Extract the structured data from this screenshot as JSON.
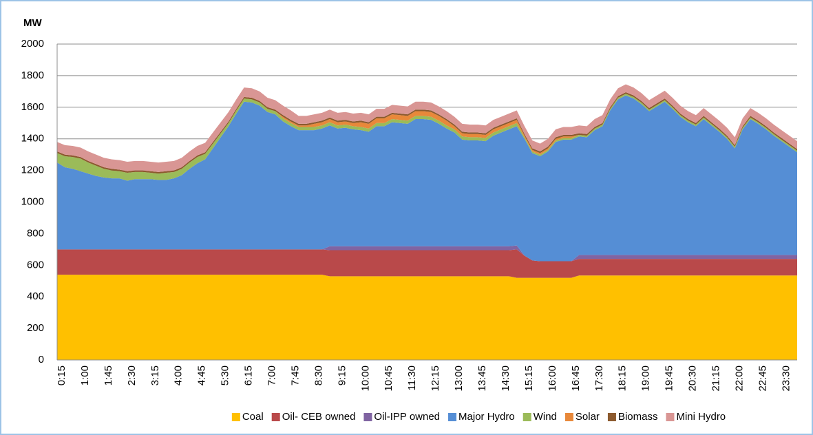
{
  "chart_data": {
    "type": "stacked-area",
    "y_label": "MW",
    "categories": [
      "0:15",
      null,
      null,
      "1:00",
      null,
      null,
      "1:45",
      null,
      null,
      "2:30",
      null,
      null,
      "3:15",
      null,
      null,
      "4:00",
      null,
      null,
      "4:45",
      null,
      null,
      "5:30",
      null,
      null,
      "6:15",
      null,
      null,
      "7:00",
      null,
      null,
      "7:45",
      null,
      null,
      "8:30",
      null,
      null,
      "9:15",
      null,
      null,
      "10:00",
      null,
      null,
      "10:45",
      null,
      null,
      "11:30",
      null,
      null,
      "12:15",
      null,
      null,
      "13:00",
      null,
      null,
      "13:45",
      null,
      null,
      "14:30",
      null,
      null,
      "15:15",
      null,
      null,
      "16:00",
      null,
      null,
      "16:45",
      null,
      null,
      "17:30",
      null,
      null,
      "18:15",
      null,
      null,
      "19:00",
      null,
      null,
      "19:45",
      null,
      null,
      "20:30",
      null,
      null,
      "21:15",
      null,
      null,
      "22:00",
      null,
      null,
      "22:45",
      null,
      null,
      "23:30",
      null,
      null
    ],
    "series": [
      {
        "name": "Coal",
        "color": "#ffc000",
        "values": [
          540,
          540,
          540,
          540,
          540,
          540,
          540,
          540,
          540,
          540,
          540,
          540,
          540,
          540,
          540,
          540,
          540,
          540,
          540,
          540,
          540,
          540,
          540,
          540,
          540,
          540,
          540,
          540,
          540,
          540,
          540,
          540,
          540,
          540,
          540,
          530,
          530,
          530,
          530,
          530,
          530,
          530,
          530,
          530,
          530,
          530,
          530,
          530,
          530,
          530,
          530,
          530,
          530,
          530,
          530,
          530,
          530,
          530,
          530,
          520,
          520,
          520,
          520,
          520,
          520,
          520,
          520,
          535,
          535,
          535,
          535,
          535,
          535,
          535,
          535,
          535,
          535,
          535,
          535,
          535,
          535,
          535,
          535,
          535,
          535,
          535,
          535,
          535,
          535,
          535,
          535,
          535,
          535,
          535,
          535,
          535
        ]
      },
      {
        "name": "Oil- CEB owned",
        "color": "#b9494a",
        "values": [
          160,
          160,
          160,
          160,
          160,
          160,
          160,
          160,
          160,
          160,
          160,
          160,
          160,
          160,
          160,
          160,
          160,
          160,
          160,
          160,
          160,
          160,
          160,
          160,
          160,
          160,
          160,
          160,
          160,
          160,
          160,
          160,
          160,
          160,
          160,
          165,
          165,
          165,
          165,
          165,
          165,
          165,
          165,
          165,
          165,
          165,
          165,
          165,
          165,
          165,
          165,
          165,
          165,
          165,
          165,
          165,
          165,
          165,
          165,
          180,
          140,
          110,
          105,
          105,
          105,
          105,
          105,
          105,
          105,
          105,
          105,
          105,
          105,
          105,
          105,
          105,
          105,
          105,
          105,
          105,
          105,
          105,
          105,
          105,
          105,
          105,
          105,
          105,
          105,
          105,
          105,
          105,
          105,
          105,
          105,
          105
        ]
      },
      {
        "name": "Oil-IPP owned",
        "color": "#8064a2",
        "values": [
          0,
          0,
          0,
          0,
          0,
          0,
          0,
          0,
          0,
          0,
          0,
          0,
          0,
          0,
          0,
          0,
          0,
          0,
          0,
          0,
          0,
          0,
          0,
          0,
          0,
          0,
          0,
          0,
          0,
          0,
          0,
          0,
          0,
          0,
          0,
          25,
          25,
          25,
          25,
          25,
          25,
          25,
          25,
          25,
          25,
          25,
          25,
          25,
          25,
          25,
          25,
          25,
          25,
          25,
          25,
          25,
          25,
          25,
          25,
          25,
          0,
          0,
          0,
          0,
          0,
          0,
          0,
          25,
          25,
          25,
          25,
          25,
          25,
          25,
          25,
          25,
          25,
          25,
          25,
          25,
          25,
          25,
          25,
          25,
          25,
          25,
          25,
          25,
          25,
          25,
          25,
          25,
          25,
          25,
          25,
          25
        ]
      },
      {
        "name": "Major Hydro",
        "color": "#558ed5",
        "values": [
          550,
          520,
          510,
          495,
          480,
          465,
          455,
          450,
          450,
          435,
          445,
          445,
          445,
          440,
          440,
          450,
          470,
          510,
          545,
          570,
          640,
          710,
          780,
          860,
          935,
          930,
          910,
          870,
          855,
          810,
          780,
          755,
          755,
          755,
          765,
          765,
          745,
          750,
          740,
          735,
          725,
          760,
          760,
          785,
          780,
          775,
          805,
          805,
          800,
          775,
          745,
          720,
          675,
          670,
          670,
          665,
          700,
          720,
          740,
          755,
          740,
          680,
          665,
          695,
          755,
          770,
          770,
          750,
          745,
          790,
          815,
          915,
          985,
          1010,
          990,
          955,
          910,
          940,
          970,
          925,
          875,
          840,
          815,
          860,
          820,
          780,
          735,
          675,
          795,
          860,
          830,
          795,
          755,
          720,
          685,
          650
        ]
      },
      {
        "name": "Wind",
        "color": "#9bbb59",
        "values": [
          60,
          70,
          75,
          80,
          70,
          65,
          55,
          50,
          45,
          50,
          45,
          45,
          40,
          40,
          45,
          40,
          40,
          40,
          40,
          35,
          30,
          25,
          20,
          20,
          20,
          20,
          20,
          20,
          20,
          20,
          20,
          20,
          20,
          20,
          20,
          20,
          20,
          20,
          20,
          20,
          20,
          20,
          20,
          20,
          20,
          20,
          20,
          20,
          20,
          20,
          20,
          20,
          20,
          20,
          20,
          20,
          20,
          20,
          20,
          20,
          10,
          10,
          10,
          10,
          10,
          10,
          10,
          10,
          10,
          10,
          10,
          10,
          10,
          10,
          10,
          10,
          10,
          10,
          10,
          10,
          10,
          10,
          10,
          10,
          10,
          10,
          10,
          10,
          10,
          10,
          10,
          10,
          10,
          10,
          10,
          10
        ]
      },
      {
        "name": "Solar",
        "color": "#e8883a",
        "values": [
          0,
          0,
          0,
          0,
          0,
          0,
          0,
          0,
          0,
          0,
          0,
          0,
          0,
          0,
          0,
          0,
          0,
          0,
          0,
          0,
          0,
          0,
          0,
          0,
          0,
          0,
          0,
          0,
          0,
          10,
          10,
          10,
          10,
          20,
          20,
          20,
          20,
          20,
          20,
          30,
          30,
          30,
          30,
          30,
          30,
          30,
          30,
          30,
          30,
          30,
          30,
          20,
          20,
          20,
          20,
          20,
          20,
          20,
          20,
          20,
          10,
          10,
          10,
          10,
          10,
          10,
          10,
          0,
          0,
          0,
          0,
          0,
          0,
          0,
          0,
          0,
          0,
          0,
          0,
          0,
          0,
          0,
          0,
          0,
          0,
          0,
          0,
          0,
          0,
          0,
          0,
          0,
          0,
          0,
          0,
          0
        ]
      },
      {
        "name": "Biomass",
        "color": "#8c5a2e",
        "values": [
          10,
          10,
          10,
          10,
          10,
          10,
          10,
          10,
          10,
          10,
          10,
          10,
          10,
          10,
          10,
          10,
          10,
          10,
          10,
          10,
          10,
          10,
          10,
          10,
          10,
          10,
          10,
          10,
          10,
          10,
          10,
          10,
          10,
          10,
          10,
          10,
          10,
          10,
          10,
          10,
          10,
          10,
          10,
          10,
          10,
          10,
          10,
          10,
          10,
          10,
          10,
          10,
          10,
          10,
          10,
          10,
          10,
          10,
          10,
          10,
          10,
          10,
          10,
          10,
          10,
          10,
          10,
          10,
          10,
          10,
          10,
          10,
          10,
          10,
          10,
          10,
          10,
          10,
          10,
          10,
          10,
          10,
          10,
          10,
          10,
          10,
          10,
          10,
          10,
          10,
          10,
          10,
          10,
          10,
          10,
          10
        ]
      },
      {
        "name": "Mini Hydro",
        "color": "#d99694",
        "values": [
          60,
          60,
          60,
          60,
          60,
          60,
          60,
          60,
          60,
          60,
          60,
          60,
          60,
          60,
          60,
          60,
          60,
          60,
          60,
          60,
          60,
          60,
          60,
          60,
          60,
          60,
          60,
          60,
          60,
          60,
          60,
          50,
          50,
          50,
          50,
          50,
          50,
          50,
          50,
          50,
          50,
          50,
          50,
          50,
          50,
          50,
          50,
          50,
          50,
          50,
          50,
          50,
          50,
          50,
          50,
          50,
          50,
          50,
          50,
          50,
          50,
          50,
          50,
          50,
          50,
          50,
          50,
          50,
          50,
          50,
          50,
          50,
          50,
          50,
          50,
          50,
          50,
          50,
          50,
          50,
          50,
          50,
          50,
          50,
          50,
          50,
          50,
          50,
          50,
          50,
          50,
          50,
          50,
          50,
          50,
          50
        ]
      }
    ],
    "ylim": [
      0,
      2000
    ],
    "yticks": [
      0,
      200,
      400,
      600,
      800,
      1000,
      1200,
      1400,
      1600,
      1800,
      2000
    ],
    "grid": true,
    "legend": "bottom"
  }
}
